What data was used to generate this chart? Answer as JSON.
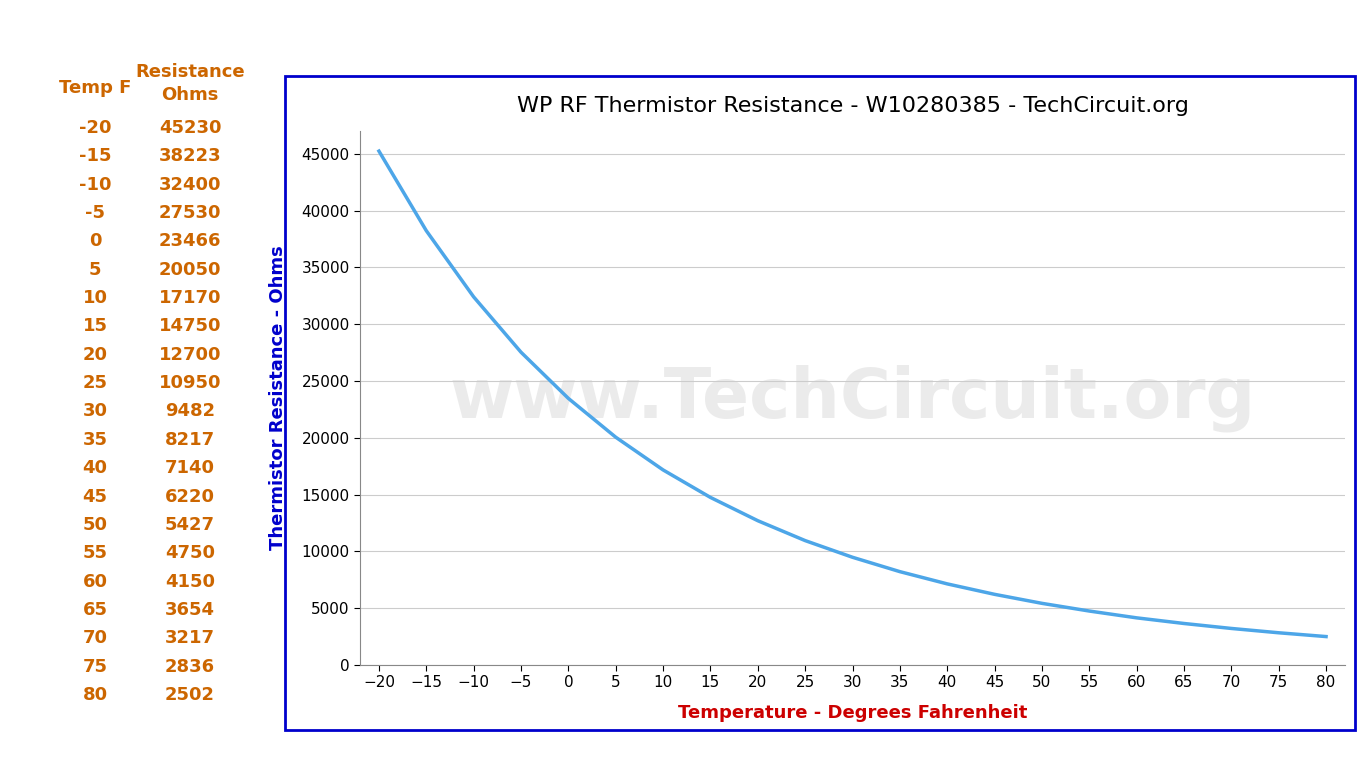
{
  "title": "WP RF Thermistor Resistance - W10280385 - TechCircuit.org",
  "xlabel": "Temperature - Degrees Fahrenheit",
  "ylabel": "Thermistor Resistance - Ohms",
  "temperatures": [
    -20,
    -15,
    -10,
    -5,
    0,
    5,
    10,
    15,
    20,
    25,
    30,
    35,
    40,
    45,
    50,
    55,
    60,
    65,
    70,
    75,
    80
  ],
  "resistances": [
    45230,
    38223,
    32400,
    27530,
    23466,
    20050,
    17170,
    14750,
    12700,
    10950,
    9482,
    8217,
    7140,
    6220,
    5427,
    4750,
    4150,
    3654,
    3217,
    2836,
    2502
  ],
  "table_col1_header": "Temp F",
  "table_col2_header": "Resistance\nOhms",
  "line_color": "#4da6e8",
  "ylabel_color": "#0000cc",
  "xlabel_color": "#cc0000",
  "title_color": "#000000",
  "table_color": "#cc6600",
  "border_color": "#0000cc",
  "background_color": "#ffffff",
  "ylim": [
    0,
    47000
  ],
  "yticks": [
    0,
    5000,
    10000,
    15000,
    20000,
    25000,
    30000,
    35000,
    40000,
    45000
  ],
  "xticks": [
    -20,
    -15,
    -10,
    -5,
    0,
    5,
    10,
    15,
    20,
    25,
    30,
    35,
    40,
    45,
    50,
    55,
    60,
    65,
    70,
    75,
    80
  ],
  "title_fontsize": 16,
  "axis_label_fontsize": 13,
  "tick_fontsize": 11,
  "table_fontsize": 13,
  "table_header_fontsize": 13,
  "grid_color": "#cccccc",
  "grid_linewidth": 0.8,
  "watermark_text": "www.TechCircuit.org",
  "watermark2_text": ".TechCircuit.org"
}
